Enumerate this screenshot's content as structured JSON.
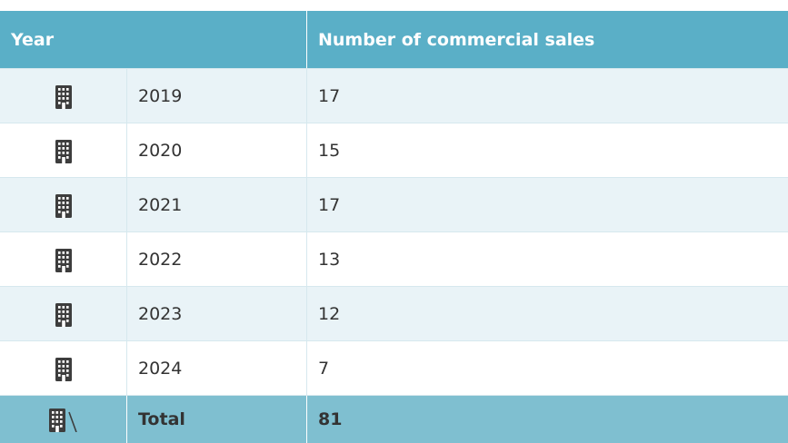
{
  "table": {
    "header": [
      "Year",
      "Number of commercial sales"
    ],
    "rows": [
      [
        "2019",
        17
      ],
      [
        "2020",
        15
      ],
      [
        "2021",
        17
      ],
      [
        "2022",
        13
      ],
      [
        "2023",
        12
      ],
      [
        "2024",
        7
      ]
    ],
    "total": [
      "Total",
      81
    ]
  }
}
